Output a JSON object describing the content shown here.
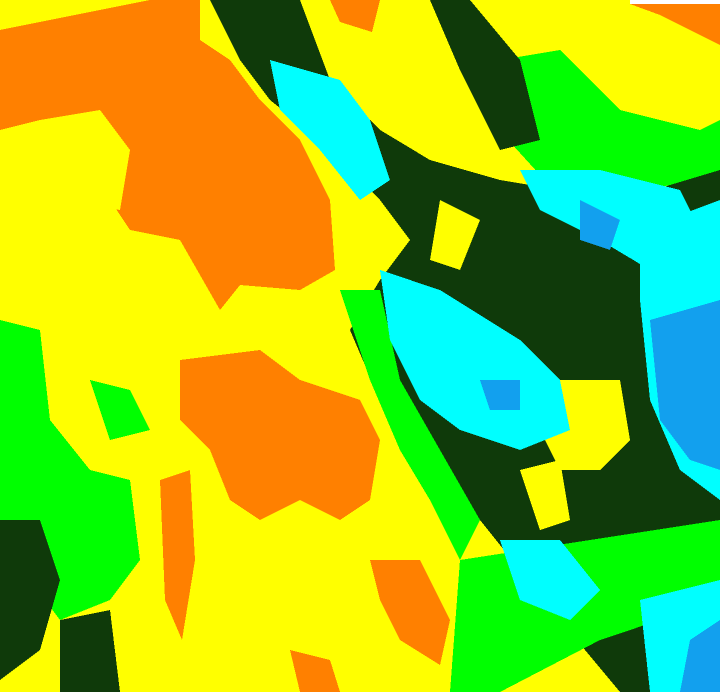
{
  "map": {
    "type": "classified raster",
    "classes": [
      {
        "key": "orange",
        "color": "#FF8000"
      },
      {
        "key": "yellow",
        "color": "#FFFF00"
      },
      {
        "key": "green",
        "color": "#00FF00"
      },
      {
        "key": "darkgreen",
        "color": "#0F3A0A"
      },
      {
        "key": "cyan",
        "color": "#00FFFF"
      },
      {
        "key": "blue",
        "color": "#12A0EE"
      },
      {
        "key": "nodata",
        "color": "#FFFFFF"
      }
    ]
  }
}
